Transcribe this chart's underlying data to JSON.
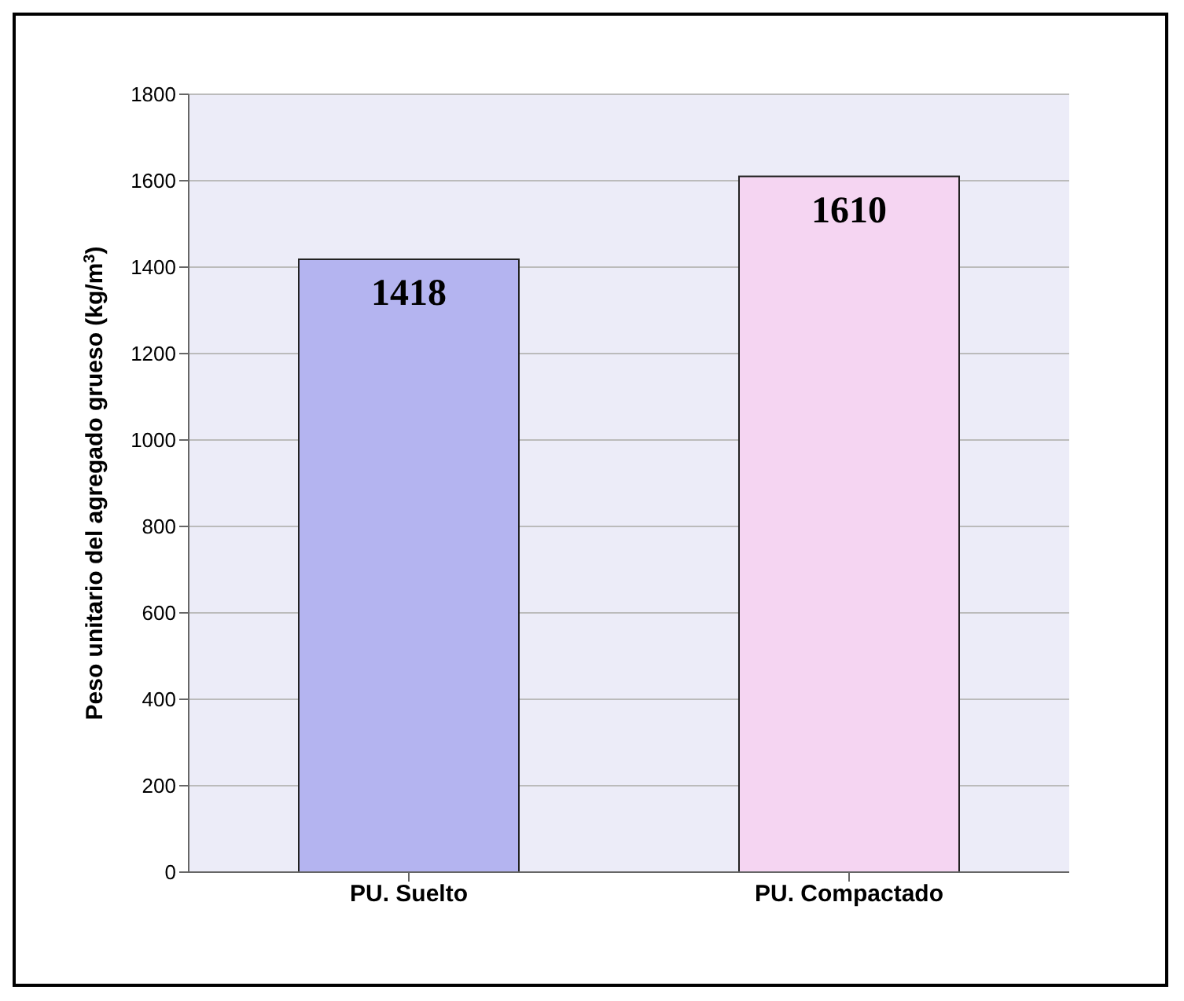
{
  "chart_data": {
    "type": "bar",
    "categories": [
      "PU. Suelto",
      "PU. Compactado"
    ],
    "values": [
      1418,
      1610
    ],
    "colors": [
      "#b4b4f0",
      "#f5d5f2"
    ],
    "ylabel": "Peso unitario del agregado grueso (kg/m$^{3}$)",
    "ylim": [
      0,
      1800
    ],
    "yticks": [
      0,
      200,
      400,
      600,
      800,
      1000,
      1200,
      1400,
      1600,
      1800
    ],
    "grid": "y",
    "data_labels": true
  }
}
